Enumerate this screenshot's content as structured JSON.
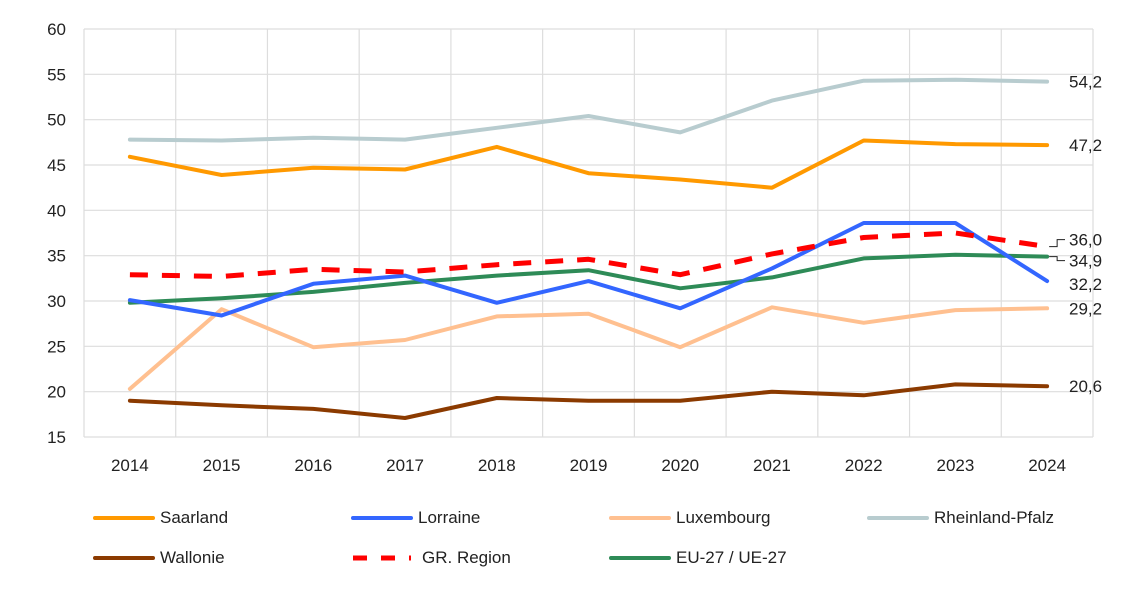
{
  "chart_data": {
    "type": "line",
    "title": "",
    "xlabel": "",
    "ylabel": "",
    "ylim": [
      15,
      60
    ],
    "yticks": [
      15,
      20,
      25,
      30,
      35,
      40,
      45,
      50,
      55,
      60
    ],
    "ytick_labels": [
      "15",
      "20",
      "25",
      "30",
      "35",
      "40",
      "45",
      "50",
      "55",
      "60"
    ],
    "grid": true,
    "legend_position": "bottom",
    "x": [
      "2014",
      "2015",
      "2016",
      "2017",
      "2018",
      "2019",
      "2020",
      "2021",
      "2022",
      "2023",
      "2024"
    ],
    "series": [
      {
        "name": "Saarland",
        "color": "#FF9900",
        "dashed": false,
        "values": [
          45.9,
          43.9,
          44.7,
          44.5,
          47.0,
          44.1,
          43.4,
          42.5,
          47.7,
          47.3,
          47.2
        ],
        "end_label": "47,2"
      },
      {
        "name": "Lorraine",
        "color": "#3366FF",
        "dashed": false,
        "values": [
          30.1,
          28.4,
          31.9,
          32.8,
          29.8,
          32.2,
          29.2,
          33.6,
          38.6,
          38.6,
          32.2
        ],
        "end_label": "32,2"
      },
      {
        "name": "Luxembourg",
        "color": "#FFC090",
        "dashed": false,
        "values": [
          20.3,
          29.1,
          24.9,
          25.7,
          28.3,
          28.6,
          24.9,
          29.3,
          27.6,
          29.0,
          29.2
        ],
        "end_label": "29,2"
      },
      {
        "name": "Rheinland-Pfalz",
        "color": "#B8CCCF",
        "dashed": false,
        "values": [
          47.8,
          47.7,
          48.0,
          47.8,
          49.1,
          50.4,
          48.6,
          52.1,
          54.3,
          54.4,
          54.2
        ],
        "end_label": "54,2"
      },
      {
        "name": "Wallonie",
        "color": "#8B3A00",
        "dashed": false,
        "values": [
          19.0,
          18.5,
          18.1,
          17.1,
          19.3,
          19.0,
          19.0,
          20.0,
          19.6,
          20.8,
          20.6
        ],
        "end_label": "20,6"
      },
      {
        "name": "GR. Region",
        "color": "#FF0000",
        "dashed": true,
        "values": [
          32.9,
          32.7,
          33.5,
          33.2,
          34.0,
          34.6,
          32.9,
          35.2,
          37.0,
          37.5,
          36.0
        ],
        "end_label": "36,0"
      },
      {
        "name": "EU-27 / UE-27",
        "color": "#2E8B57",
        "dashed": false,
        "values": [
          29.8,
          30.3,
          31.0,
          32.0,
          32.8,
          33.4,
          31.4,
          32.6,
          34.7,
          35.1,
          34.9
        ],
        "end_label": "34,9"
      }
    ]
  }
}
